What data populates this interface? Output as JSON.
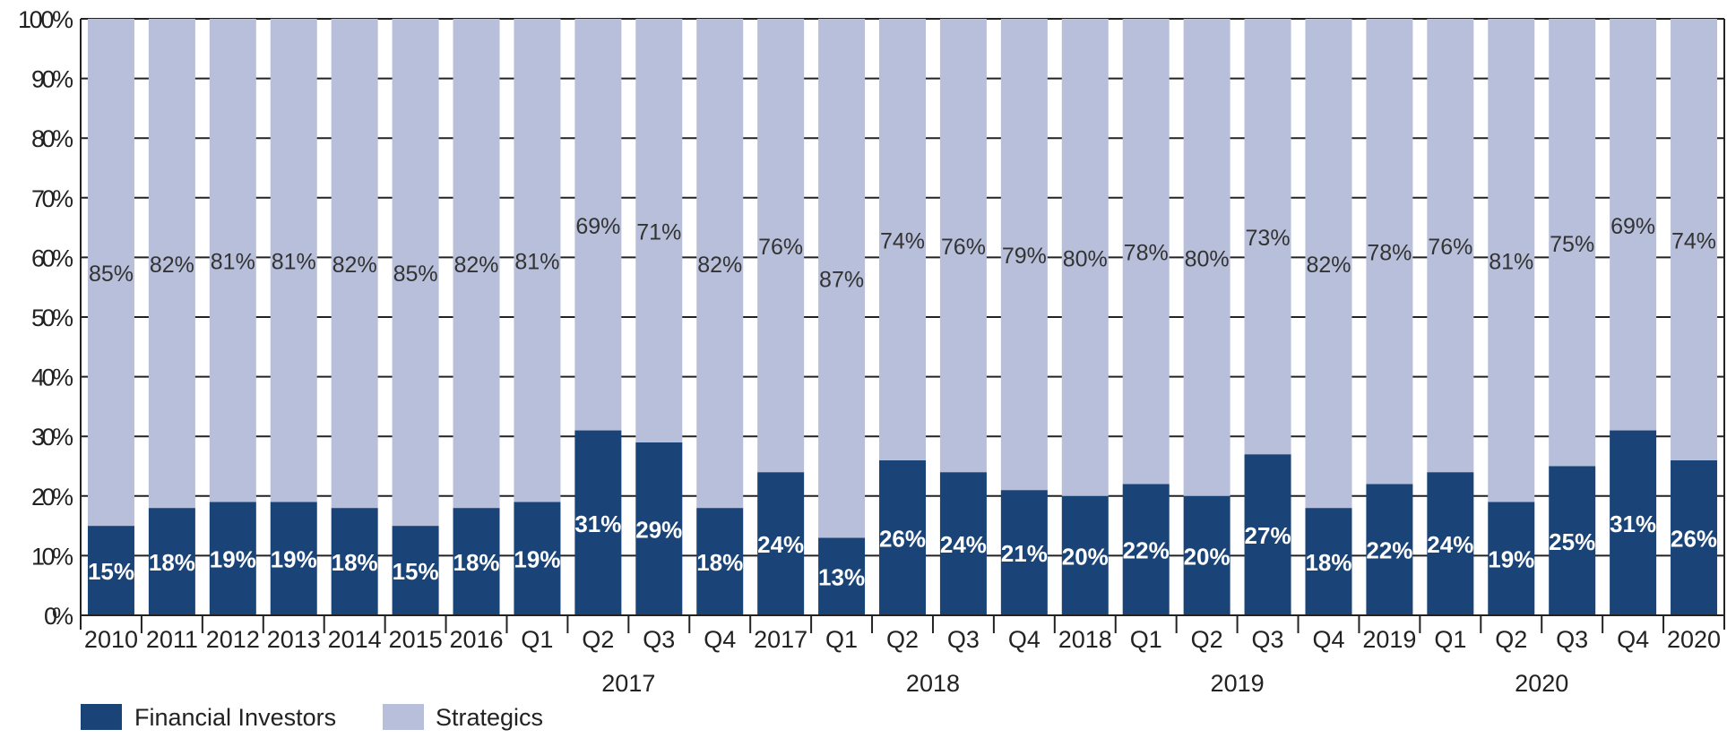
{
  "chart_data": {
    "type": "bar",
    "stacked": true,
    "title": "",
    "xlabel": "",
    "ylabel": "",
    "ylim": [
      0,
      100
    ],
    "yticks": [
      "0%",
      "10%",
      "20%",
      "30%",
      "40%",
      "50%",
      "60%",
      "70%",
      "80%",
      "90%",
      "100%"
    ],
    "categories": [
      "2010",
      "2011",
      "2012",
      "2013",
      "2014",
      "2015",
      "2016",
      "Q1",
      "Q2",
      "Q3",
      "Q4",
      "2017",
      "Q1",
      "Q2",
      "Q3",
      "Q4",
      "2018",
      "Q1",
      "Q2",
      "Q3",
      "Q4",
      "2019",
      "Q1",
      "Q2",
      "Q3",
      "Q4",
      "2020"
    ],
    "groups": [
      {
        "label": "2017",
        "start": 7,
        "end": 10
      },
      {
        "label": "2018",
        "start": 12,
        "end": 15
      },
      {
        "label": "2019",
        "start": 17,
        "end": 20
      },
      {
        "label": "2020",
        "start": 22,
        "end": 25
      }
    ],
    "series": [
      {
        "name": "Financial Investors",
        "color": "#1a4477",
        "values": [
          15,
          18,
          19,
          19,
          18,
          15,
          18,
          19,
          31,
          29,
          18,
          24,
          13,
          26,
          24,
          21,
          20,
          22,
          20,
          27,
          18,
          22,
          24,
          19,
          25,
          31,
          26
        ]
      },
      {
        "name": "Strategics",
        "color": "#b8bfda",
        "values": [
          85,
          82,
          81,
          81,
          82,
          85,
          82,
          81,
          69,
          71,
          82,
          76,
          87,
          74,
          76,
          79,
          80,
          78,
          80,
          73,
          82,
          78,
          76,
          81,
          75,
          69,
          74
        ]
      }
    ],
    "legend": "bottom-left",
    "grid": true
  }
}
